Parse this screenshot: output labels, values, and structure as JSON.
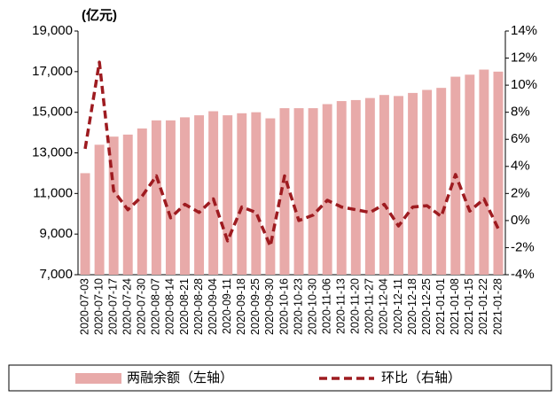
{
  "chart_data": {
    "type": "bar",
    "annotation": "(亿元)",
    "categories": [
      "2020-07-03",
      "2020-07-10",
      "2020-07-17",
      "2020-07-24",
      "2020-07-30",
      "2020-08-07",
      "2020-08-14",
      "2020-08-21",
      "2020-08-28",
      "2020-09-04",
      "2020-09-11",
      "2020-09-18",
      "2020-09-25",
      "2020-09-30",
      "2020-10-16",
      "2020-10-23",
      "2020-10-30",
      "2020-11-06",
      "2020-11-13",
      "2020-11-20",
      "2020-11-27",
      "2020-12-04",
      "2020-12-11",
      "2020-12-18",
      "2020-12-25",
      "2021-01-01",
      "2021-01-08",
      "2021-01-15",
      "2021-01-22",
      "2021-01-28"
    ],
    "series": [
      {
        "name": "两融余额（左轴）",
        "type": "bar",
        "color": "#e8aaa9",
        "values": [
          12000,
          13400,
          13800,
          13900,
          14200,
          14600,
          14600,
          14750,
          14850,
          15050,
          14850,
          14950,
          15000,
          14700,
          15200,
          15200,
          15200,
          15400,
          15550,
          15600,
          15700,
          15850,
          15800,
          15950,
          16100,
          16200,
          16750,
          16850,
          17100,
          17000
        ]
      },
      {
        "name": "环比（右轴）",
        "type": "line",
        "axis": "y2",
        "color": "#9e1b20",
        "values": [
          5.3,
          11.7,
          2.2,
          0.8,
          1.8,
          3.3,
          0.2,
          1.2,
          0.6,
          1.6,
          -1.5,
          1.0,
          0.6,
          -1.9,
          3.3,
          0.0,
          0.4,
          1.5,
          1.0,
          0.8,
          0.6,
          1.2,
          -0.4,
          1.0,
          1.1,
          0.3,
          3.4,
          0.7,
          1.6,
          -0.6
        ]
      }
    ],
    "ylim": [
      7000,
      19000
    ],
    "yticks": [
      {
        "value": 7000,
        "label": "7,000"
      },
      {
        "value": 9000,
        "label": "9,000"
      },
      {
        "value": 11000,
        "label": "11,000"
      },
      {
        "value": 13000,
        "label": "13,000"
      },
      {
        "value": 15000,
        "label": "15,000"
      },
      {
        "value": 17000,
        "label": "17,000"
      },
      {
        "value": 19000,
        "label": "19,000"
      }
    ],
    "y2lim": [
      -4,
      14
    ],
    "y2ticks": [
      {
        "value": -4,
        "label": "-4%"
      },
      {
        "value": -2,
        "label": "-2%"
      },
      {
        "value": 0,
        "label": "0%"
      },
      {
        "value": 2,
        "label": "2%"
      },
      {
        "value": 4,
        "label": "4%"
      },
      {
        "value": 6,
        "label": "6%"
      },
      {
        "value": 8,
        "label": "8%"
      },
      {
        "value": 10,
        "label": "10%"
      },
      {
        "value": 12,
        "label": "12%"
      },
      {
        "value": 14,
        "label": "14%"
      }
    ],
    "legend": "bottom"
  }
}
